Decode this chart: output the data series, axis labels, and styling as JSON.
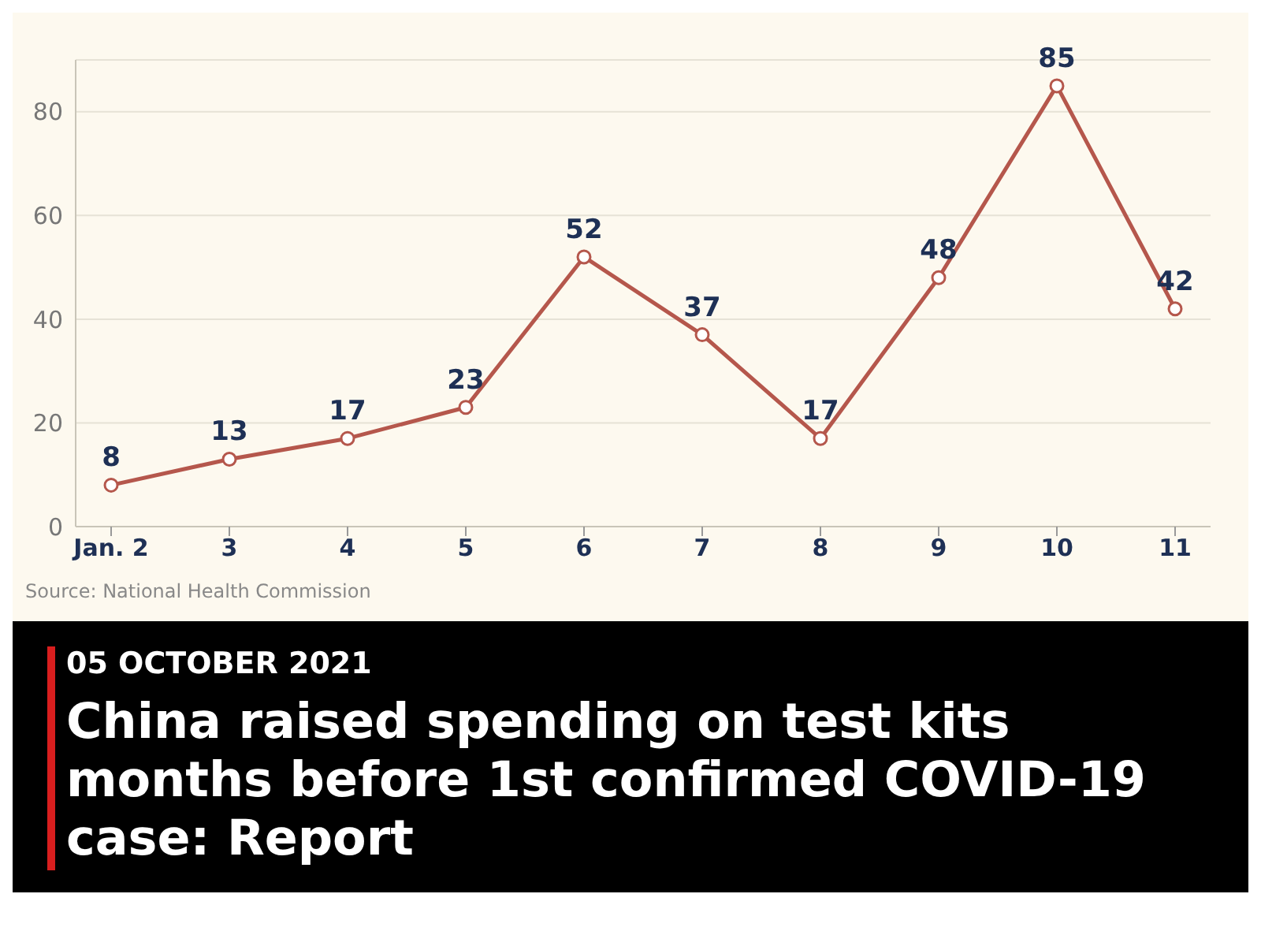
{
  "chart_data": {
    "type": "line",
    "title": "China raised spending on test kits months before 1st confirmed COVID-19 case: Report",
    "subtitle": "05 OCTOBER 2021",
    "categories": [
      "Jan. 2",
      "3",
      "4",
      "5",
      "6",
      "7",
      "8",
      "9",
      "10",
      "11"
    ],
    "series": [
      {
        "color": "#b5574c",
        "values": [
          8,
          13,
          17,
          23,
          52,
          37,
          17,
          48,
          85,
          42
        ]
      }
    ],
    "ylim": [
      0,
      90
    ],
    "yticks": [
      0,
      20,
      40,
      60,
      80
    ],
    "grid": "y",
    "marker": "circle",
    "line_style": "solid",
    "data_labels": true,
    "annotations": [
      "Source: National Health Commission"
    ]
  }
}
